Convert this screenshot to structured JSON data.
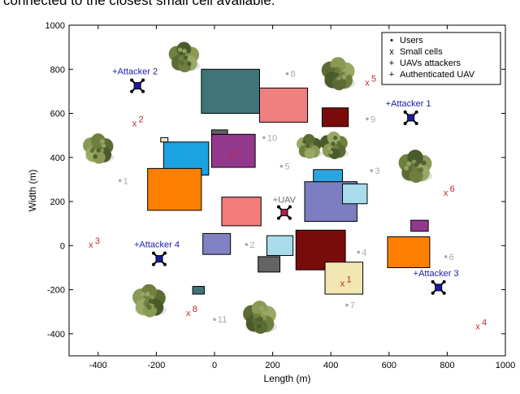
{
  "caption": "connected to the closest small cell available.",
  "chart_data": {
    "type": "scatter",
    "title": "",
    "xlabel": "Length  (m)",
    "ylabel": "Width (m)",
    "xlim": [
      -500,
      1000
    ],
    "ylim": [
      -500,
      1000
    ],
    "xticks": [
      "-400",
      "-200",
      "0",
      "200",
      "400",
      "600",
      "800",
      "1000"
    ],
    "yticks": [
      "-400",
      "-200",
      "0",
      "200",
      "400",
      "600",
      "800",
      "1000"
    ],
    "legend": {
      "placement": "top-right",
      "entries": [
        {
          "marker": "•",
          "color": "#a8a8a8",
          "label": "Users"
        },
        {
          "marker": "x",
          "color": "#c0282d",
          "label": "Small cells"
        },
        {
          "marker": "+",
          "color": "#1a1aa8",
          "label": "UAVs attackers"
        },
        {
          "marker": "+",
          "color": "#6d6d6d",
          "label": "Authenticated UAV"
        }
      ]
    },
    "colors": {
      "users": "#a8a8a8",
      "small_cells": "#c0282d",
      "attackers": "#1a1aa8",
      "authenticated": "#6d6d6d"
    },
    "users": [
      {
        "label": "1",
        "x": -325,
        "y": 295
      },
      {
        "label": "2",
        "x": 110,
        "y": 5
      },
      {
        "label": "3",
        "x": 540,
        "y": 340
      },
      {
        "label": "4",
        "x": 495,
        "y": -30
      },
      {
        "label": "5",
        "x": 230,
        "y": 360
      },
      {
        "label": "6",
        "x": 795,
        "y": -50
      },
      {
        "label": "7",
        "x": 455,
        "y": -270
      },
      {
        "label": "8",
        "x": 250,
        "y": 780
      },
      {
        "label": "9",
        "x": 525,
        "y": 575
      },
      {
        "label": "10",
        "x": 170,
        "y": 490
      },
      {
        "label": "11",
        "x": 0,
        "y": -335
      }
    ],
    "small_cells": [
      {
        "label": "1",
        "x": 440,
        "y": -170
      },
      {
        "label": "2",
        "x": -275,
        "y": 555
      },
      {
        "label": "3",
        "x": -425,
        "y": 5
      },
      {
        "label": "4",
        "x": 905,
        "y": -365
      },
      {
        "label": "5",
        "x": 525,
        "y": 740
      },
      {
        "label": "6",
        "x": 795,
        "y": 240
      },
      {
        "label": "7",
        "x": 55,
        "y": 405
      },
      {
        "label": "8",
        "x": -90,
        "y": -305
      }
    ],
    "attackers": [
      {
        "label": "Attacker 1",
        "x": 675,
        "y": 580
      },
      {
        "label": "Attacker 2",
        "x": -265,
        "y": 725
      },
      {
        "label": "Attacker 3",
        "x": 770,
        "y": -190
      },
      {
        "label": "Attacker 4",
        "x": -190,
        "y": -60
      }
    ],
    "authenticated_uav": [
      {
        "label": "UAV",
        "x": 240,
        "y": 150
      }
    ],
    "buildings": [
      {
        "x0": -45,
        "x1": 155,
        "y0": 600,
        "y1": 800,
        "color": "#3f7478"
      },
      {
        "x0": 155,
        "x1": 320,
        "y0": 560,
        "y1": 715,
        "color": "#f08080"
      },
      {
        "x0": 370,
        "x1": 460,
        "y0": 540,
        "y1": 625,
        "color": "#7a0b0b"
      },
      {
        "x0": -175,
        "x1": -20,
        "y0": 320,
        "y1": 470,
        "color": "#1aa3e0"
      },
      {
        "x0": -10,
        "x1": 140,
        "y0": 355,
        "y1": 505,
        "color": "#94388e"
      },
      {
        "x0": -230,
        "x1": -45,
        "y0": 160,
        "y1": 350,
        "color": "#ff7f00"
      },
      {
        "x0": 25,
        "x1": 160,
        "y0": 90,
        "y1": 220,
        "color": "#f47b7b"
      },
      {
        "x0": -40,
        "x1": 55,
        "y0": -40,
        "y1": 55,
        "color": "#8181c4"
      },
      {
        "x0": 180,
        "x1": 270,
        "y0": -45,
        "y1": 45,
        "color": "#a8dbec"
      },
      {
        "x0": 310,
        "x1": 490,
        "y0": 110,
        "y1": 290,
        "color": "#7d7dc2"
      },
      {
        "x0": 340,
        "x1": 440,
        "y0": 290,
        "y1": 345,
        "color": "#2aa5de"
      },
      {
        "x0": 440,
        "x1": 525,
        "y0": 190,
        "y1": 280,
        "color": "#a8dbec"
      },
      {
        "x0": 280,
        "x1": 450,
        "y0": -110,
        "y1": 70,
        "color": "#7a0b0b"
      },
      {
        "x0": 380,
        "x1": 510,
        "y0": -220,
        "y1": -75,
        "color": "#f2e6b3"
      },
      {
        "x0": 595,
        "x1": 740,
        "y0": -100,
        "y1": 40,
        "color": "#ff7f00"
      },
      {
        "x0": 675,
        "x1": 735,
        "y0": 65,
        "y1": 115,
        "color": "#94388e"
      },
      {
        "x0": 150,
        "x1": 225,
        "y0": -120,
        "y1": -50,
        "color": "#646464"
      },
      {
        "x0": -75,
        "x1": -35,
        "y0": -220,
        "y1": -185,
        "color": "#3f7478"
      },
      {
        "x0": -185,
        "x1": -160,
        "y0": 470,
        "y1": 490,
        "color": "#ece8c8"
      },
      {
        "x0": -10,
        "x1": 45,
        "y0": 505,
        "y1": 525,
        "color": "#646464"
      }
    ],
    "trees": [
      {
        "x": -105,
        "y": 855,
        "r": 55
      },
      {
        "x": -400,
        "y": 440,
        "r": 55
      },
      {
        "x": 425,
        "y": 780,
        "r": 60
      },
      {
        "x": 325,
        "y": 450,
        "r": 45
      },
      {
        "x": 410,
        "y": 455,
        "r": 50
      },
      {
        "x": 690,
        "y": 360,
        "r": 60
      },
      {
        "x": -225,
        "y": -250,
        "r": 60
      },
      {
        "x": 155,
        "y": -325,
        "r": 60
      }
    ],
    "tree_colors": [
      "#4a5a2a",
      "#6f7f3f",
      "#8a9a55",
      "#5c6b34",
      "#9aa866"
    ]
  }
}
